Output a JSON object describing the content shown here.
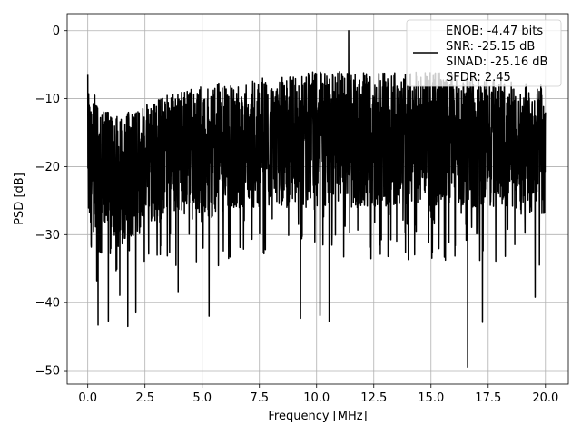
{
  "chart_data": {
    "type": "line",
    "title": "",
    "xlabel": "Frequency [MHz]",
    "ylabel": "PSD [dB]",
    "xlim": [
      -0.9,
      21.0
    ],
    "ylim": [
      -52,
      2.5
    ],
    "xticks": [
      0.0,
      2.5,
      5.0,
      7.5,
      10.0,
      12.5,
      15.0,
      17.5,
      20.0
    ],
    "xtick_labels": [
      "0.0",
      "2.5",
      "5.0",
      "7.5",
      "10.0",
      "12.5",
      "15.0",
      "17.5",
      "20.0"
    ],
    "yticks": [
      0,
      -10,
      -20,
      -30,
      -40,
      -50
    ],
    "ytick_labels": [
      "0",
      "−10",
      "−20",
      "−30",
      "−40",
      "−50"
    ],
    "grid": true,
    "legend_position": "top-right",
    "legend_entries": [
      "ENOB: -4.47 bits",
      "SNR: -25.15 dB",
      "SINAD: -25.16 dB",
      "SFDR: 2.45"
    ],
    "series": [
      {
        "color": "#000000",
        "noise_floor_db_envelope": {
          "x": [
            0.0,
            0.5,
            1.0,
            2.0,
            3.0,
            4.0,
            5.0,
            7.0,
            10.0,
            12.5,
            15.0,
            17.5,
            20.0
          ],
          "upper": [
            -7,
            -11,
            -12,
            -12,
            -10,
            -9,
            -8,
            -7,
            -6,
            -6,
            -6,
            -7,
            -8
          ],
          "lower": [
            -28,
            -33,
            -33,
            -30,
            -28,
            -27,
            -27,
            -26,
            -26,
            -26,
            -26,
            -26,
            -27
          ]
        },
        "peaks": [
          {
            "x": 0.0,
            "y": -6.5
          },
          {
            "x": 11.4,
            "y": 0.0
          }
        ],
        "dips": [
          {
            "x": 0.45,
            "y": -43.3
          },
          {
            "x": 0.9,
            "y": -42.7
          },
          {
            "x": 1.75,
            "y": -43.5
          },
          {
            "x": 2.1,
            "y": -41.5
          },
          {
            "x": 3.95,
            "y": -38.5
          },
          {
            "x": 5.3,
            "y": -42.0
          },
          {
            "x": 9.3,
            "y": -42.3
          },
          {
            "x": 10.15,
            "y": -41.9
          },
          {
            "x": 10.55,
            "y": -42.8
          },
          {
            "x": 16.6,
            "y": -49.5
          },
          {
            "x": 17.25,
            "y": -42.9
          },
          {
            "x": 19.55,
            "y": -39.2
          }
        ]
      }
    ]
  }
}
